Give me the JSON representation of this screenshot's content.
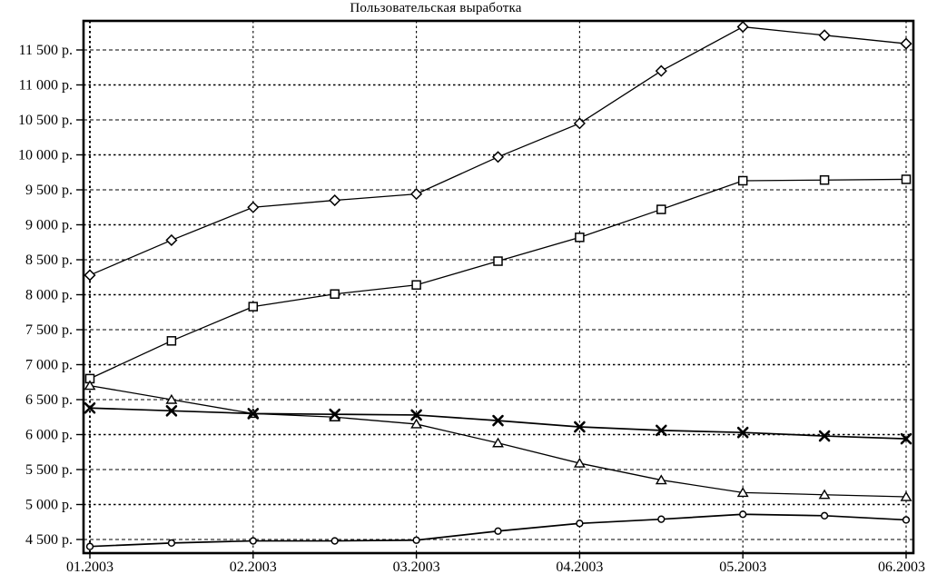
{
  "chart_data": {
    "type": "line",
    "title": "Пользовательская выработка",
    "xlabel": "",
    "ylabel": "",
    "grid": true,
    "legend_position": "none",
    "background_color": "#ffffff",
    "line_color": "#000000",
    "ylim": [
      4300,
      11930
    ],
    "x": [
      1,
      1.5,
      2,
      2.5,
      3,
      3.5,
      4,
      4.5,
      5,
      5.5,
      6
    ],
    "x_ticks": [
      {
        "month": 1,
        "label": "01.2003"
      },
      {
        "month": 2,
        "label": "02.2003"
      },
      {
        "month": 3,
        "label": "03.2003"
      },
      {
        "month": 4,
        "label": "04.2003"
      },
      {
        "month": 5,
        "label": "05.2003"
      },
      {
        "month": 6,
        "label": "06.2003"
      }
    ],
    "y_ticks": [
      {
        "value": 4500,
        "label": "4 500 р."
      },
      {
        "value": 5000,
        "label": "5 000 р."
      },
      {
        "value": 5500,
        "label": "5 500 р."
      },
      {
        "value": 6000,
        "label": "6 000 р."
      },
      {
        "value": 6500,
        "label": "6 500 р."
      },
      {
        "value": 7000,
        "label": "7 000 р."
      },
      {
        "value": 7500,
        "label": "7 500 р."
      },
      {
        "value": 8000,
        "label": "8 000 р."
      },
      {
        "value": 8500,
        "label": "8 500 р."
      },
      {
        "value": 9000,
        "label": "9 000 р."
      },
      {
        "value": 9500,
        "label": "9 500 р."
      },
      {
        "value": 10000,
        "label": "10 000 р."
      },
      {
        "value": 10500,
        "label": "10 500 р."
      },
      {
        "value": 11000,
        "label": "11 000 р."
      },
      {
        "value": 11500,
        "label": "11 500 р."
      }
    ],
    "series": [
      {
        "name": "diamond-series",
        "marker": "diamond",
        "values": [
          8280,
          8780,
          9250,
          9350,
          9440,
          9970,
          10450,
          11200,
          11830,
          11710,
          11590
        ]
      },
      {
        "name": "square-series",
        "marker": "square",
        "values": [
          6800,
          7340,
          7830,
          8010,
          8140,
          8480,
          8820,
          9220,
          9630,
          9640,
          9650
        ]
      },
      {
        "name": "triangle-series",
        "marker": "triangle",
        "values": [
          6700,
          6500,
          6300,
          6250,
          6150,
          5880,
          5590,
          5350,
          5170,
          5140,
          5110
        ]
      },
      {
        "name": "x-series",
        "marker": "x-cross",
        "values": [
          6380,
          6340,
          6300,
          6290,
          6280,
          6200,
          6110,
          6060,
          6030,
          5980,
          5940
        ]
      },
      {
        "name": "circle-series",
        "marker": "circle",
        "values": [
          4400,
          4450,
          4480,
          4480,
          4490,
          4620,
          4730,
          4790,
          4860,
          4840,
          4780
        ]
      }
    ]
  }
}
